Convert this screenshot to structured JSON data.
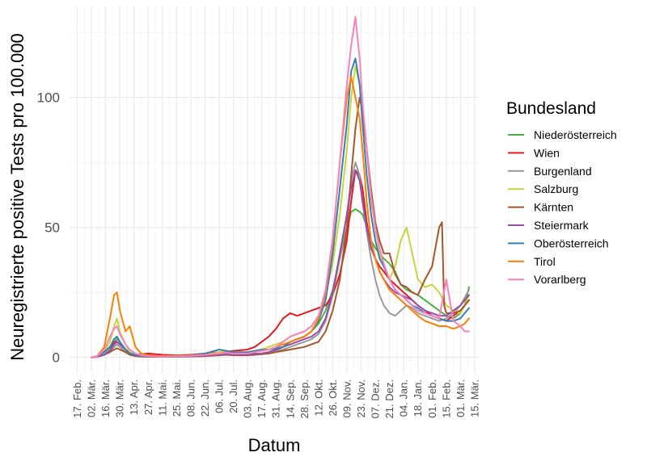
{
  "chart_data": {
    "type": "line",
    "title": "",
    "xlabel": "Datum",
    "ylabel": "Neuregistrierte positive Tests pro 100.000",
    "x_ticks": [
      "17. Feb.",
      "02. Mär.",
      "16. Mär.",
      "30. Mär.",
      "13. Apr.",
      "27. Apr.",
      "11. Mai.",
      "25. Mai.",
      "08. Jun.",
      "22. Jun.",
      "06. Jul.",
      "20. Jul.",
      "03. Aug.",
      "17. Aug.",
      "31. Aug.",
      "14. Sep.",
      "28. Sep.",
      "12. Okt.",
      "26. Okt.",
      "09. Nov.",
      "23. Nov.",
      "07. Dez.",
      "21. Dez.",
      "04. Jan.",
      "18. Jan.",
      "01. Feb.",
      "15. Feb.",
      "01. Mär.",
      "15. Mär."
    ],
    "y_ticks": [
      0,
      50,
      100
    ],
    "xlim_weeks": [
      0,
      28
    ],
    "ylim": [
      -6,
      135
    ],
    "grid": true,
    "legend": {
      "title": "Bundesland",
      "position": "right"
    },
    "series": [
      {
        "name": "Niederösterreich",
        "color": "#4DAF4A",
        "x": [
          1.0,
          1.4,
          1.9,
          2.3,
          2.6,
          2.8,
          3.0,
          3.4,
          3.7,
          4.1,
          4.5,
          5,
          6,
          7,
          8,
          9,
          10,
          10.5,
          11,
          12,
          12.5,
          13,
          13.5,
          14,
          14.5,
          15,
          15.5,
          16,
          16.5,
          17,
          17.5,
          18,
          18.5,
          19,
          19.3,
          19.6,
          19.9,
          20.1,
          20.4,
          20.7,
          21.0,
          21.3,
          21.6,
          22,
          22.4,
          22.8,
          23.2,
          23.6,
          24,
          24.5,
          25,
          25.5,
          26,
          26.5,
          27,
          27.3,
          27.6
        ],
        "y": [
          0,
          0.2,
          1,
          3,
          6,
          7,
          6,
          3,
          2,
          1,
          0.8,
          0.5,
          0.4,
          0.5,
          0.6,
          0.8,
          1.5,
          2,
          1.8,
          1.8,
          1.5,
          1.2,
          2,
          3,
          4,
          6,
          7,
          8,
          10,
          13,
          18,
          26,
          38,
          50,
          56,
          57,
          56,
          55,
          50,
          45,
          42,
          40,
          38,
          36,
          33,
          28,
          26,
          25,
          24,
          22,
          20,
          18,
          16,
          15,
          17,
          20,
          27
        ]
      },
      {
        "name": "Wien",
        "color": "#E41A1C",
        "x": [
          1.0,
          1.4,
          1.9,
          2.3,
          2.6,
          2.8,
          3.0,
          3.4,
          3.7,
          4.1,
          4.5,
          5,
          6,
          7,
          8,
          9,
          10,
          10.5,
          11,
          12,
          12.5,
          13,
          13.5,
          14,
          14.5,
          15,
          15.5,
          16,
          16.5,
          17,
          17.5,
          18,
          18.5,
          19,
          19.3,
          19.6,
          19.9,
          20.1,
          20.4,
          20.7,
          21.0,
          21.3,
          21.6,
          22,
          22.4,
          22.8,
          23.2,
          23.6,
          24,
          24.5,
          25,
          25.5,
          26,
          26.5,
          27,
          27.3,
          27.6
        ],
        "y": [
          0,
          0.3,
          2,
          4,
          6,
          6,
          5,
          3,
          1.5,
          1,
          1.2,
          1.5,
          1,
          0.8,
          1,
          1.5,
          2,
          2.2,
          2.5,
          3,
          4,
          6,
          8,
          11,
          15,
          17,
          16,
          17,
          18,
          19,
          20,
          24,
          32,
          45,
          60,
          72,
          70,
          65,
          52,
          42,
          38,
          35,
          33,
          30,
          28,
          26,
          24,
          22,
          20,
          18,
          16,
          15,
          14,
          16,
          18,
          20,
          22
        ]
      },
      {
        "name": "Burgenland",
        "color": "#999999",
        "x": [
          1.0,
          1.4,
          1.9,
          2.3,
          2.6,
          2.8,
          3.0,
          3.4,
          3.7,
          4.1,
          4.5,
          5,
          6,
          7,
          8,
          9,
          10,
          10.5,
          11,
          12,
          12.5,
          13,
          13.5,
          14,
          14.5,
          15,
          15.5,
          16,
          16.5,
          17,
          17.5,
          18,
          18.5,
          19,
          19.3,
          19.6,
          19.9,
          20.1,
          20.4,
          20.7,
          21.0,
          21.3,
          21.6,
          22,
          22.4,
          22.8,
          23.2,
          23.6,
          24,
          24.5,
          25,
          25.5,
          26,
          26.5,
          27,
          27.3,
          27.6
        ],
        "y": [
          0,
          0.2,
          1,
          2.5,
          4,
          5,
          4,
          2,
          1.2,
          0.8,
          0.5,
          0.3,
          0.2,
          0.2,
          0.3,
          0.5,
          1,
          1.2,
          1,
          1,
          1.2,
          1.5,
          2,
          2.5,
          3,
          4,
          5,
          6,
          7,
          9,
          14,
          24,
          38,
          55,
          68,
          75,
          70,
          60,
          48,
          38,
          30,
          24,
          20,
          17,
          16,
          18,
          20,
          19,
          17,
          16,
          15,
          14,
          15,
          17,
          20,
          23,
          26
        ]
      },
      {
        "name": "Salzburg",
        "color": "#C9D43A",
        "x": [
          1.0,
          1.4,
          1.9,
          2.3,
          2.6,
          2.8,
          3.0,
          3.4,
          3.7,
          4.1,
          4.5,
          5,
          6,
          7,
          8,
          9,
          10,
          10.5,
          11,
          12,
          12.5,
          13,
          13.5,
          14,
          14.5,
          15,
          15.5,
          16,
          16.5,
          17,
          17.5,
          18,
          18.5,
          19,
          19.3,
          19.6,
          19.9,
          20.1,
          20.4,
          20.7,
          21.0,
          21.3,
          21.6,
          22,
          22.4,
          22.8,
          23.2,
          23.6,
          24,
          24.5,
          25,
          25.5,
          26,
          26.5,
          27,
          27.3,
          27.6
        ],
        "y": [
          0,
          0.3,
          2,
          6,
          12,
          15,
          10,
          5,
          2,
          1,
          0.8,
          0.6,
          0.5,
          0.6,
          0.7,
          1,
          2,
          2.5,
          2,
          2,
          2.5,
          3,
          4,
          5,
          6,
          8,
          9,
          10,
          12,
          16,
          24,
          36,
          55,
          80,
          100,
          112,
          105,
          95,
          80,
          60,
          50,
          40,
          35,
          30,
          35,
          45,
          50,
          40,
          30,
          27,
          28,
          25,
          20,
          18,
          17,
          20,
          24
        ]
      },
      {
        "name": "Kärnten",
        "color": "#A65628",
        "x": [
          1.0,
          1.4,
          1.9,
          2.3,
          2.6,
          2.8,
          3.0,
          3.4,
          3.7,
          4.1,
          4.5,
          5,
          6,
          7,
          8,
          9,
          10,
          10.5,
          11,
          12,
          12.5,
          13,
          13.5,
          14,
          14.5,
          15,
          15.5,
          16,
          16.5,
          17,
          17.5,
          18,
          18.5,
          19,
          19.3,
          19.6,
          19.9,
          20.1,
          20.4,
          20.7,
          21.0,
          21.3,
          21.6,
          22,
          22.4,
          22.8,
          23.2,
          23.6,
          24,
          24.5,
          25,
          25.5,
          25.7,
          25.85,
          26,
          26.5,
          27,
          27.3,
          27.6
        ],
        "y": [
          0,
          0.2,
          1,
          2,
          3,
          3.5,
          3,
          2,
          1,
          0.5,
          0.3,
          0.2,
          0.2,
          0.3,
          0.4,
          0.5,
          0.8,
          1,
          0.8,
          0.8,
          1,
          1.2,
          1.5,
          2,
          2.5,
          3,
          3.5,
          4,
          5,
          6,
          10,
          18,
          30,
          50,
          70,
          88,
          100,
          95,
          80,
          65,
          52,
          45,
          40,
          40,
          32,
          28,
          27,
          25,
          24,
          30,
          35,
          50,
          52,
          20,
          17,
          17,
          18,
          20,
          22
        ]
      },
      {
        "name": "Steiermark",
        "color": "#984EA3",
        "x": [
          1.0,
          1.4,
          1.9,
          2.3,
          2.6,
          2.8,
          3.0,
          3.4,
          3.7,
          4.1,
          4.5,
          5,
          6,
          7,
          8,
          9,
          10,
          10.5,
          11,
          12,
          12.5,
          13,
          13.5,
          14,
          14.5,
          15,
          15.5,
          16,
          16.5,
          17,
          17.5,
          18,
          18.5,
          19,
          19.3,
          19.6,
          19.9,
          20.1,
          20.4,
          20.7,
          21.0,
          21.3,
          21.6,
          22,
          22.4,
          22.8,
          23.2,
          23.6,
          24,
          24.5,
          25,
          25.5,
          26,
          26.5,
          27,
          27.3,
          27.6
        ],
        "y": [
          0,
          0.2,
          1,
          2.5,
          5,
          6,
          5,
          3,
          1.5,
          0.8,
          0.5,
          0.3,
          0.3,
          0.3,
          0.5,
          0.7,
          1,
          1.2,
          1,
          1,
          1.3,
          1.5,
          2,
          3,
          4,
          5,
          6,
          7,
          8,
          10,
          15,
          25,
          40,
          55,
          65,
          72,
          68,
          60,
          50,
          42,
          38,
          33,
          30,
          27,
          25,
          24,
          23,
          22,
          20,
          18,
          17,
          16,
          16,
          18,
          20,
          22,
          24
        ]
      },
      {
        "name": "Oberösterreich",
        "color": "#377EB8",
        "x": [
          1.0,
          1.4,
          1.9,
          2.3,
          2.6,
          2.8,
          3.0,
          3.4,
          3.7,
          4.1,
          4.5,
          5,
          6,
          7,
          8,
          9,
          10,
          10.5,
          11,
          12,
          12.5,
          13,
          13.5,
          14,
          14.5,
          15,
          15.5,
          16,
          16.5,
          17,
          17.5,
          18,
          18.5,
          19,
          19.3,
          19.6,
          19.9,
          20.1,
          20.4,
          20.7,
          21.0,
          21.3,
          21.6,
          22,
          22.4,
          22.8,
          23.2,
          23.6,
          24,
          24.5,
          25,
          25.5,
          26,
          26.5,
          27,
          27.3,
          27.6
        ],
        "y": [
          0,
          0.3,
          2,
          4,
          7,
          8,
          6,
          3,
          1.5,
          1,
          0.5,
          0.4,
          0.3,
          0.4,
          0.8,
          1.5,
          3,
          2.5,
          2,
          2,
          2.5,
          3,
          3,
          3.5,
          4,
          6,
          7,
          8,
          10,
          14,
          22,
          40,
          65,
          90,
          110,
          115,
          105,
          90,
          70,
          55,
          45,
          38,
          35,
          30,
          26,
          24,
          22,
          20,
          19,
          17,
          16,
          15,
          14,
          14,
          15,
          17,
          19
        ]
      },
      {
        "name": "Tirol",
        "color": "#FF7F00",
        "x": [
          1.0,
          1.4,
          1.9,
          2.3,
          2.6,
          2.8,
          3.0,
          3.4,
          3.7,
          4.1,
          4.5,
          5,
          6,
          7,
          8,
          9,
          10,
          10.5,
          11,
          12,
          12.5,
          13,
          13.5,
          14,
          14.5,
          15,
          15.5,
          16,
          16.5,
          17,
          17.5,
          18,
          18.5,
          19,
          19.3,
          19.6,
          19.9,
          20.1,
          20.4,
          20.7,
          21.0,
          21.3,
          21.6,
          22,
          22.4,
          22.8,
          23.2,
          23.6,
          24,
          24.5,
          25,
          25.5,
          26,
          26.5,
          27,
          27.3,
          27.6
        ],
        "y": [
          0,
          0.5,
          4,
          15,
          24,
          25,
          18,
          10,
          12,
          4,
          1.5,
          0.8,
          0.5,
          0.5,
          0.7,
          1,
          1.5,
          1.8,
          1.5,
          1.5,
          2,
          2.5,
          3,
          4,
          5,
          6,
          7,
          8,
          10,
          15,
          25,
          45,
          75,
          100,
          108,
          100,
          92,
          80,
          60,
          45,
          38,
          33,
          30,
          26,
          24,
          22,
          20,
          18,
          16,
          14,
          13,
          12,
          12,
          11,
          12,
          13,
          15
        ]
      },
      {
        "name": "Vorarlberg",
        "color": "#F781BF",
        "x": [
          1.0,
          1.4,
          1.9,
          2.3,
          2.6,
          2.8,
          3.0,
          3.4,
          3.7,
          4.1,
          4.5,
          5,
          6,
          7,
          8,
          9,
          10,
          10.5,
          11,
          12,
          12.5,
          13,
          13.5,
          14,
          14.5,
          15,
          15.5,
          16,
          16.5,
          17,
          17.5,
          18,
          18.5,
          19,
          19.3,
          19.6,
          19.9,
          20.1,
          20.4,
          20.7,
          21.0,
          21.3,
          21.6,
          22,
          22.4,
          22.8,
          23.2,
          23.6,
          24,
          24.5,
          25,
          25.5,
          26,
          26.5,
          27,
          27.3,
          27.6
        ],
        "y": [
          0,
          0.3,
          3,
          8,
          11,
          12,
          9,
          5,
          3,
          1.5,
          0.8,
          0.5,
          0.3,
          0.4,
          0.6,
          1,
          1.5,
          1.8,
          1.5,
          1.5,
          2,
          2.5,
          3,
          4,
          6,
          8,
          9,
          10,
          12,
          16,
          26,
          46,
          75,
          105,
          120,
          131,
          115,
          98,
          80,
          62,
          50,
          42,
          36,
          30,
          26,
          24,
          22,
          20,
          18,
          17,
          16,
          15,
          30,
          14,
          12,
          10,
          10
        ]
      }
    ]
  }
}
